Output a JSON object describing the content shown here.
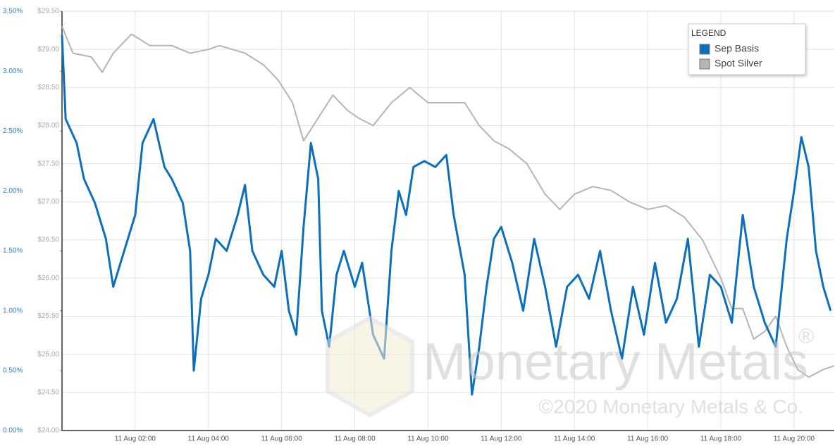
{
  "chart_data": {
    "type": "line",
    "legend_title": "LEGEND",
    "legend_position": "top-right",
    "annotations": [
      "Monetary Metals",
      "®",
      "©2020 Monetary Metals & Co."
    ],
    "xlim": [
      0,
      21.1
    ],
    "xticks": [
      {
        "value": 2,
        "label": "11 Aug 02:00"
      },
      {
        "value": 4,
        "label": "11 Aug 04:00"
      },
      {
        "value": 6,
        "label": "11 Aug 06:00"
      },
      {
        "value": 8,
        "label": "11 Aug 08:00"
      },
      {
        "value": 10,
        "label": "11 Aug 10:00"
      },
      {
        "value": 12,
        "label": "11 Aug 12:00"
      },
      {
        "value": 14,
        "label": "11 Aug 14:00"
      },
      {
        "value": 16,
        "label": "11 Aug 16:00"
      },
      {
        "value": 18,
        "label": "11 Aug 18:00"
      },
      {
        "value": 20,
        "label": "11 Aug 20:00"
      }
    ],
    "ylim": [
      0,
      3.5
    ],
    "yticks": [
      {
        "value": 0,
        "label": "0.00%"
      },
      {
        "value": 0.5,
        "label": "0.50%"
      },
      {
        "value": 1,
        "label": "1.00%"
      },
      {
        "value": 1.5,
        "label": "1.50%"
      },
      {
        "value": 2,
        "label": "2.00%"
      },
      {
        "value": 2.5,
        "label": "2.50%"
      },
      {
        "value": 3,
        "label": "3.00%"
      },
      {
        "value": 3.5,
        "label": "3.50%"
      }
    ],
    "y2lim": [
      24,
      29.5
    ],
    "y2ticks": [
      {
        "value": 24,
        "label": "$24.00"
      },
      {
        "value": 24.5,
        "label": "$24.50"
      },
      {
        "value": 25,
        "label": "$25.00"
      },
      {
        "value": 25.5,
        "label": "$25.50"
      },
      {
        "value": 26,
        "label": "$26.00"
      },
      {
        "value": 26.5,
        "label": "$26.50"
      },
      {
        "value": 27,
        "label": "$27.00"
      },
      {
        "value": 27.5,
        "label": "$27.50"
      },
      {
        "value": 28,
        "label": "$28.00"
      },
      {
        "value": 28.5,
        "label": "$28.50"
      },
      {
        "value": 29,
        "label": "$29.00"
      },
      {
        "value": 29.5,
        "label": "$29.50"
      }
    ],
    "grid": true,
    "series": [
      {
        "name": "Sep Basis",
        "color": "#0b6fbd",
        "axis": "y",
        "x": [
          0,
          0.1,
          0.4,
          0.6,
          0.9,
          1.2,
          1.4,
          1.6,
          1.8,
          2.0,
          2.2,
          2.5,
          2.8,
          3.0,
          3.3,
          3.5,
          3.6,
          3.8,
          4.0,
          4.2,
          4.5,
          4.8,
          5.0,
          5.2,
          5.5,
          5.8,
          6.0,
          6.2,
          6.4,
          6.6,
          6.8,
          7.0,
          7.1,
          7.3,
          7.5,
          7.7,
          8.0,
          8.2,
          8.5,
          8.8,
          9.0,
          9.2,
          9.4,
          9.6,
          9.9,
          10.2,
          10.5,
          10.7,
          11.0,
          11.2,
          11.4,
          11.6,
          11.8,
          12.0,
          12.3,
          12.6,
          12.9,
          13.2,
          13.5,
          13.8,
          14.1,
          14.4,
          14.7,
          15.0,
          15.3,
          15.6,
          15.9,
          16.2,
          16.5,
          16.8,
          17.1,
          17.4,
          17.7,
          18.0,
          18.3,
          18.6,
          18.9,
          19.2,
          19.5,
          19.8,
          20.0,
          20.2,
          20.4,
          20.6,
          20.8,
          21.0
        ],
        "values": [
          3.3,
          2.6,
          2.4,
          2.1,
          1.9,
          1.6,
          1.2,
          1.4,
          1.6,
          1.8,
          2.4,
          2.6,
          2.2,
          2.1,
          1.9,
          1.5,
          0.5,
          1.1,
          1.3,
          1.6,
          1.5,
          1.8,
          2.05,
          1.5,
          1.3,
          1.2,
          1.5,
          1.0,
          0.8,
          1.7,
          2.4,
          2.1,
          1.0,
          0.7,
          1.3,
          1.5,
          1.2,
          1.4,
          0.8,
          0.6,
          1.5,
          2.0,
          1.8,
          2.2,
          2.25,
          2.2,
          2.3,
          1.8,
          1.3,
          0.3,
          0.7,
          1.2,
          1.6,
          1.7,
          1.4,
          1.0,
          1.6,
          1.2,
          0.7,
          1.2,
          1.3,
          1.1,
          1.5,
          1.0,
          0.6,
          1.2,
          0.8,
          1.4,
          0.9,
          1.1,
          1.6,
          0.7,
          1.3,
          1.2,
          0.9,
          1.8,
          1.2,
          0.9,
          0.7,
          1.6,
          2.0,
          2.45,
          2.2,
          1.5,
          1.2,
          1.0
        ]
      },
      {
        "name": "Spot Silver",
        "color": "#b5b5b5",
        "axis": "y2",
        "x": [
          0,
          0.3,
          0.8,
          1.1,
          1.4,
          1.9,
          2.4,
          3.0,
          3.5,
          4.0,
          4.3,
          5.0,
          5.5,
          5.9,
          6.3,
          6.6,
          7.0,
          7.4,
          7.8,
          8.1,
          8.5,
          9.0,
          9.5,
          10.0,
          10.5,
          11.0,
          11.4,
          11.8,
          12.2,
          12.7,
          13.2,
          13.6,
          14.0,
          14.5,
          15.0,
          15.5,
          16.0,
          16.5,
          17.0,
          17.5,
          18.0,
          18.3,
          18.6,
          18.9,
          19.2,
          19.5,
          19.8,
          20.1,
          20.4,
          20.8,
          21.1
        ],
        "values": [
          29.3,
          28.95,
          28.9,
          28.7,
          28.95,
          29.2,
          29.05,
          29.05,
          28.95,
          29.0,
          29.05,
          28.95,
          28.8,
          28.6,
          28.3,
          27.8,
          28.1,
          28.4,
          28.2,
          28.1,
          28.0,
          28.3,
          28.5,
          28.3,
          28.3,
          28.3,
          28.0,
          27.8,
          27.7,
          27.5,
          27.1,
          26.9,
          27.1,
          27.2,
          27.15,
          27.0,
          26.9,
          26.95,
          26.8,
          26.5,
          26.0,
          25.6,
          25.6,
          25.2,
          25.3,
          25.5,
          25.1,
          24.8,
          24.7,
          24.8,
          24.85
        ]
      }
    ]
  }
}
